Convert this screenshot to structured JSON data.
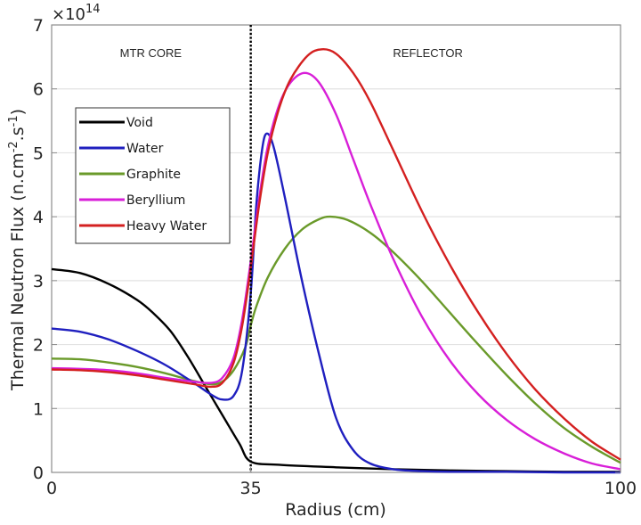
{
  "chart_data": {
    "type": "line",
    "title": "",
    "xlabel": "Radius (cm)",
    "ylabel": "Thermal Neutron Flux (n.cm⁻².s⁻¹)",
    "ylabel_parts": {
      "base": "Thermal Neutron Flux (n.cm",
      "sup1": "-2",
      "mid": ".s",
      "sup2": "-1",
      "end": ")"
    },
    "y_exponent": {
      "base": "×10",
      "power": "14"
    },
    "xlim": [
      0,
      100
    ],
    "ylim": [
      0,
      7
    ],
    "xticks": [
      0,
      35,
      100
    ],
    "xtick_labels": [
      "0",
      "35",
      "100"
    ],
    "yticks": [
      0,
      1,
      2,
      3,
      4,
      5,
      6,
      7
    ],
    "ytick_labels": [
      "0",
      "1",
      "2",
      "3",
      "4",
      "5",
      "6",
      "7"
    ],
    "grid": "horizontal",
    "legend_position": "upper-left",
    "boundary": {
      "x": 35,
      "style": "dotted",
      "color": "#000000"
    },
    "annotations": [
      {
        "text": "MTR CORE",
        "x": 12,
        "y": 6.5
      },
      {
        "text": "REFLECTOR",
        "x": 60,
        "y": 6.5
      }
    ],
    "series": [
      {
        "name": "Void",
        "color": "#000000",
        "x": [
          0,
          5,
          10,
          15,
          18,
          21,
          24,
          27,
          30,
          33,
          35,
          40,
          50,
          60,
          70,
          80,
          90,
          100
        ],
        "y": [
          3.18,
          3.12,
          2.95,
          2.7,
          2.48,
          2.2,
          1.8,
          1.35,
          0.9,
          0.45,
          0.17,
          0.12,
          0.08,
          0.05,
          0.03,
          0.02,
          0.01,
          0.01
        ]
      },
      {
        "name": "Water",
        "color": "#1f1fbf",
        "x": [
          0,
          5,
          10,
          15,
          20,
          25,
          28,
          30,
          32,
          33.5,
          35,
          36,
          37,
          37.8,
          39,
          41,
          44,
          47,
          50,
          53,
          56,
          60,
          65,
          70,
          80,
          90,
          100
        ],
        "y": [
          2.25,
          2.2,
          2.08,
          1.9,
          1.68,
          1.4,
          1.22,
          1.14,
          1.2,
          1.6,
          2.8,
          4.2,
          5.05,
          5.3,
          5.1,
          4.3,
          3.0,
          1.85,
          0.85,
          0.35,
          0.14,
          0.05,
          0.02,
          0.01,
          0.01,
          0.0,
          0.0
        ]
      },
      {
        "name": "Graphite",
        "color": "#6a9a2a",
        "x": [
          0,
          5,
          10,
          15,
          20,
          25,
          28,
          30,
          32,
          34,
          35,
          36,
          38,
          41,
          44,
          47,
          49,
          52,
          56,
          60,
          65,
          70,
          75,
          80,
          85,
          90,
          95,
          100
        ],
        "y": [
          1.78,
          1.77,
          1.72,
          1.65,
          1.55,
          1.43,
          1.38,
          1.42,
          1.6,
          1.95,
          2.3,
          2.6,
          3.05,
          3.5,
          3.8,
          3.96,
          4.0,
          3.95,
          3.75,
          3.45,
          3.0,
          2.5,
          2.0,
          1.52,
          1.08,
          0.7,
          0.4,
          0.15
        ]
      },
      {
        "name": "Beryllium",
        "color": "#d81fd8",
        "x": [
          0,
          5,
          10,
          15,
          20,
          25,
          28,
          30,
          32,
          33.5,
          35,
          36.5,
          38,
          40,
          42,
          44.5,
          47,
          50,
          53,
          56,
          60,
          65,
          70,
          75,
          80,
          85,
          90,
          95,
          100
        ],
        "y": [
          1.63,
          1.62,
          1.6,
          1.55,
          1.48,
          1.42,
          1.4,
          1.48,
          1.8,
          2.4,
          3.3,
          4.3,
          5.1,
          5.75,
          6.1,
          6.25,
          6.1,
          5.6,
          4.9,
          4.2,
          3.35,
          2.45,
          1.75,
          1.22,
          0.82,
          0.52,
          0.3,
          0.14,
          0.05
        ]
      },
      {
        "name": "Heavy Water",
        "color": "#d42020",
        "x": [
          0,
          5,
          10,
          15,
          20,
          25,
          28,
          30,
          32,
          33.5,
          35,
          36.5,
          38,
          40,
          42,
          45,
          47.5,
          50,
          53,
          56,
          60,
          65,
          70,
          75,
          80,
          85,
          90,
          95,
          100
        ],
        "y": [
          1.61,
          1.6,
          1.57,
          1.52,
          1.45,
          1.38,
          1.34,
          1.4,
          1.72,
          2.3,
          3.2,
          4.2,
          5.0,
          5.7,
          6.15,
          6.52,
          6.62,
          6.55,
          6.25,
          5.8,
          5.05,
          4.1,
          3.25,
          2.5,
          1.85,
          1.3,
          0.85,
          0.48,
          0.2
        ]
      }
    ]
  }
}
